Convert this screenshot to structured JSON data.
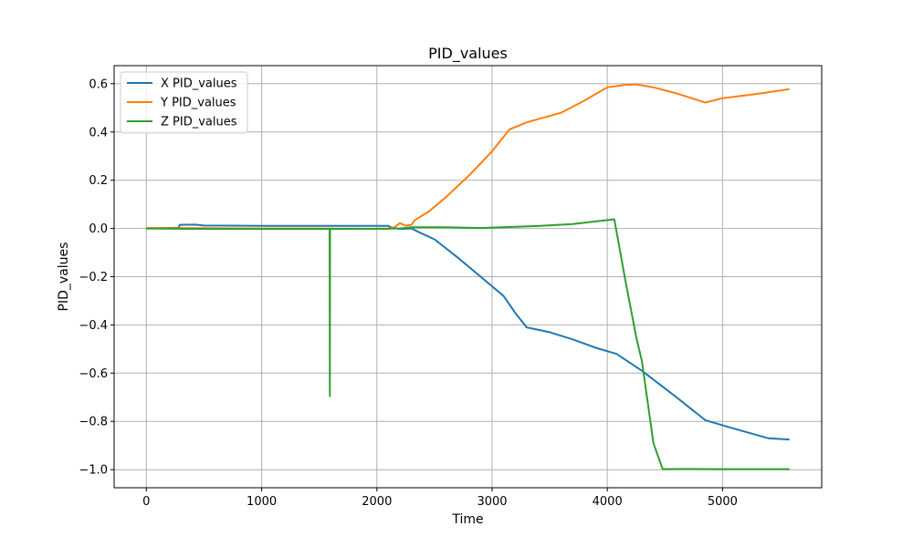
{
  "chart_data": {
    "type": "line",
    "title": "PID_values",
    "xlabel": "Time",
    "ylabel": "PID_values",
    "xlim": [
      -280,
      5860
    ],
    "ylim": [
      -1.075,
      0.675
    ],
    "xticks": [
      0,
      1000,
      2000,
      3000,
      4000,
      5000
    ],
    "xtick_labels": [
      "0",
      "1000",
      "2000",
      "3000",
      "4000",
      "5000"
    ],
    "yticks": [
      0.6,
      0.4,
      0.2,
      0.0,
      -0.2,
      -0.4,
      -0.6,
      -0.8,
      -1.0
    ],
    "ytick_labels": [
      "0.6",
      "0.4",
      "0.2",
      "0.0",
      "−0.2",
      "−0.4",
      "−0.6",
      "−0.8",
      "−1.0"
    ],
    "grid": true,
    "legend_position": "top-left",
    "series": [
      {
        "name": "X PID_values",
        "color": "#1f77b4",
        "points": [
          [
            0,
            0.0
          ],
          [
            280,
            0.003
          ],
          [
            290,
            0.015
          ],
          [
            420,
            0.016
          ],
          [
            500,
            0.012
          ],
          [
            1000,
            0.011
          ],
          [
            1500,
            0.011
          ],
          [
            2100,
            0.011
          ],
          [
            2120,
            0.005
          ],
          [
            2200,
            -0.002
          ],
          [
            2300,
            0.0
          ],
          [
            2350,
            -0.012
          ],
          [
            2500,
            -0.045
          ],
          [
            2700,
            -0.12
          ],
          [
            2900,
            -0.2
          ],
          [
            3100,
            -0.28
          ],
          [
            3200,
            -0.35
          ],
          [
            3300,
            -0.41
          ],
          [
            3500,
            -0.43
          ],
          [
            3700,
            -0.46
          ],
          [
            3900,
            -0.495
          ],
          [
            4080,
            -0.52
          ],
          [
            4300,
            -0.59
          ],
          [
            4600,
            -0.7
          ],
          [
            4850,
            -0.795
          ],
          [
            5100,
            -0.83
          ],
          [
            5400,
            -0.87
          ],
          [
            5580,
            -0.875
          ]
        ]
      },
      {
        "name": "Y PID_values",
        "color": "#ff7f0e",
        "points": [
          [
            0,
            0.002
          ],
          [
            500,
            0.001
          ],
          [
            1000,
            0.0
          ],
          [
            1500,
            0.0
          ],
          [
            2100,
            -0.002
          ],
          [
            2150,
            0.005
          ],
          [
            2200,
            0.022
          ],
          [
            2250,
            0.012
          ],
          [
            2300,
            0.015
          ],
          [
            2330,
            0.035
          ],
          [
            2450,
            0.07
          ],
          [
            2600,
            0.13
          ],
          [
            2800,
            0.22
          ],
          [
            3000,
            0.32
          ],
          [
            3150,
            0.41
          ],
          [
            3300,
            0.44
          ],
          [
            3600,
            0.48
          ],
          [
            3800,
            0.53
          ],
          [
            4000,
            0.585
          ],
          [
            4150,
            0.595
          ],
          [
            4250,
            0.597
          ],
          [
            4400,
            0.585
          ],
          [
            4600,
            0.56
          ],
          [
            4850,
            0.522
          ],
          [
            5000,
            0.54
          ],
          [
            5300,
            0.558
          ],
          [
            5580,
            0.578
          ]
        ]
      },
      {
        "name": "Z PID_values",
        "color": "#2ca02c",
        "points": [
          [
            0,
            0.0
          ],
          [
            500,
            -0.002
          ],
          [
            1000,
            -0.002
          ],
          [
            1590,
            -0.002
          ],
          [
            1592,
            -0.695
          ],
          [
            1594,
            -0.002
          ],
          [
            2000,
            -0.001
          ],
          [
            2200,
            0.0
          ],
          [
            2300,
            0.005
          ],
          [
            2600,
            0.005
          ],
          [
            2900,
            0.002
          ],
          [
            3400,
            0.01
          ],
          [
            3700,
            0.018
          ],
          [
            4060,
            0.038
          ],
          [
            4090,
            -0.04
          ],
          [
            4150,
            -0.2
          ],
          [
            4250,
            -0.45
          ],
          [
            4300,
            -0.55
          ],
          [
            4400,
            -0.89
          ],
          [
            4480,
            -0.998
          ],
          [
            4700,
            -0.997
          ],
          [
            5000,
            -0.998
          ],
          [
            5580,
            -0.998
          ]
        ]
      }
    ]
  }
}
